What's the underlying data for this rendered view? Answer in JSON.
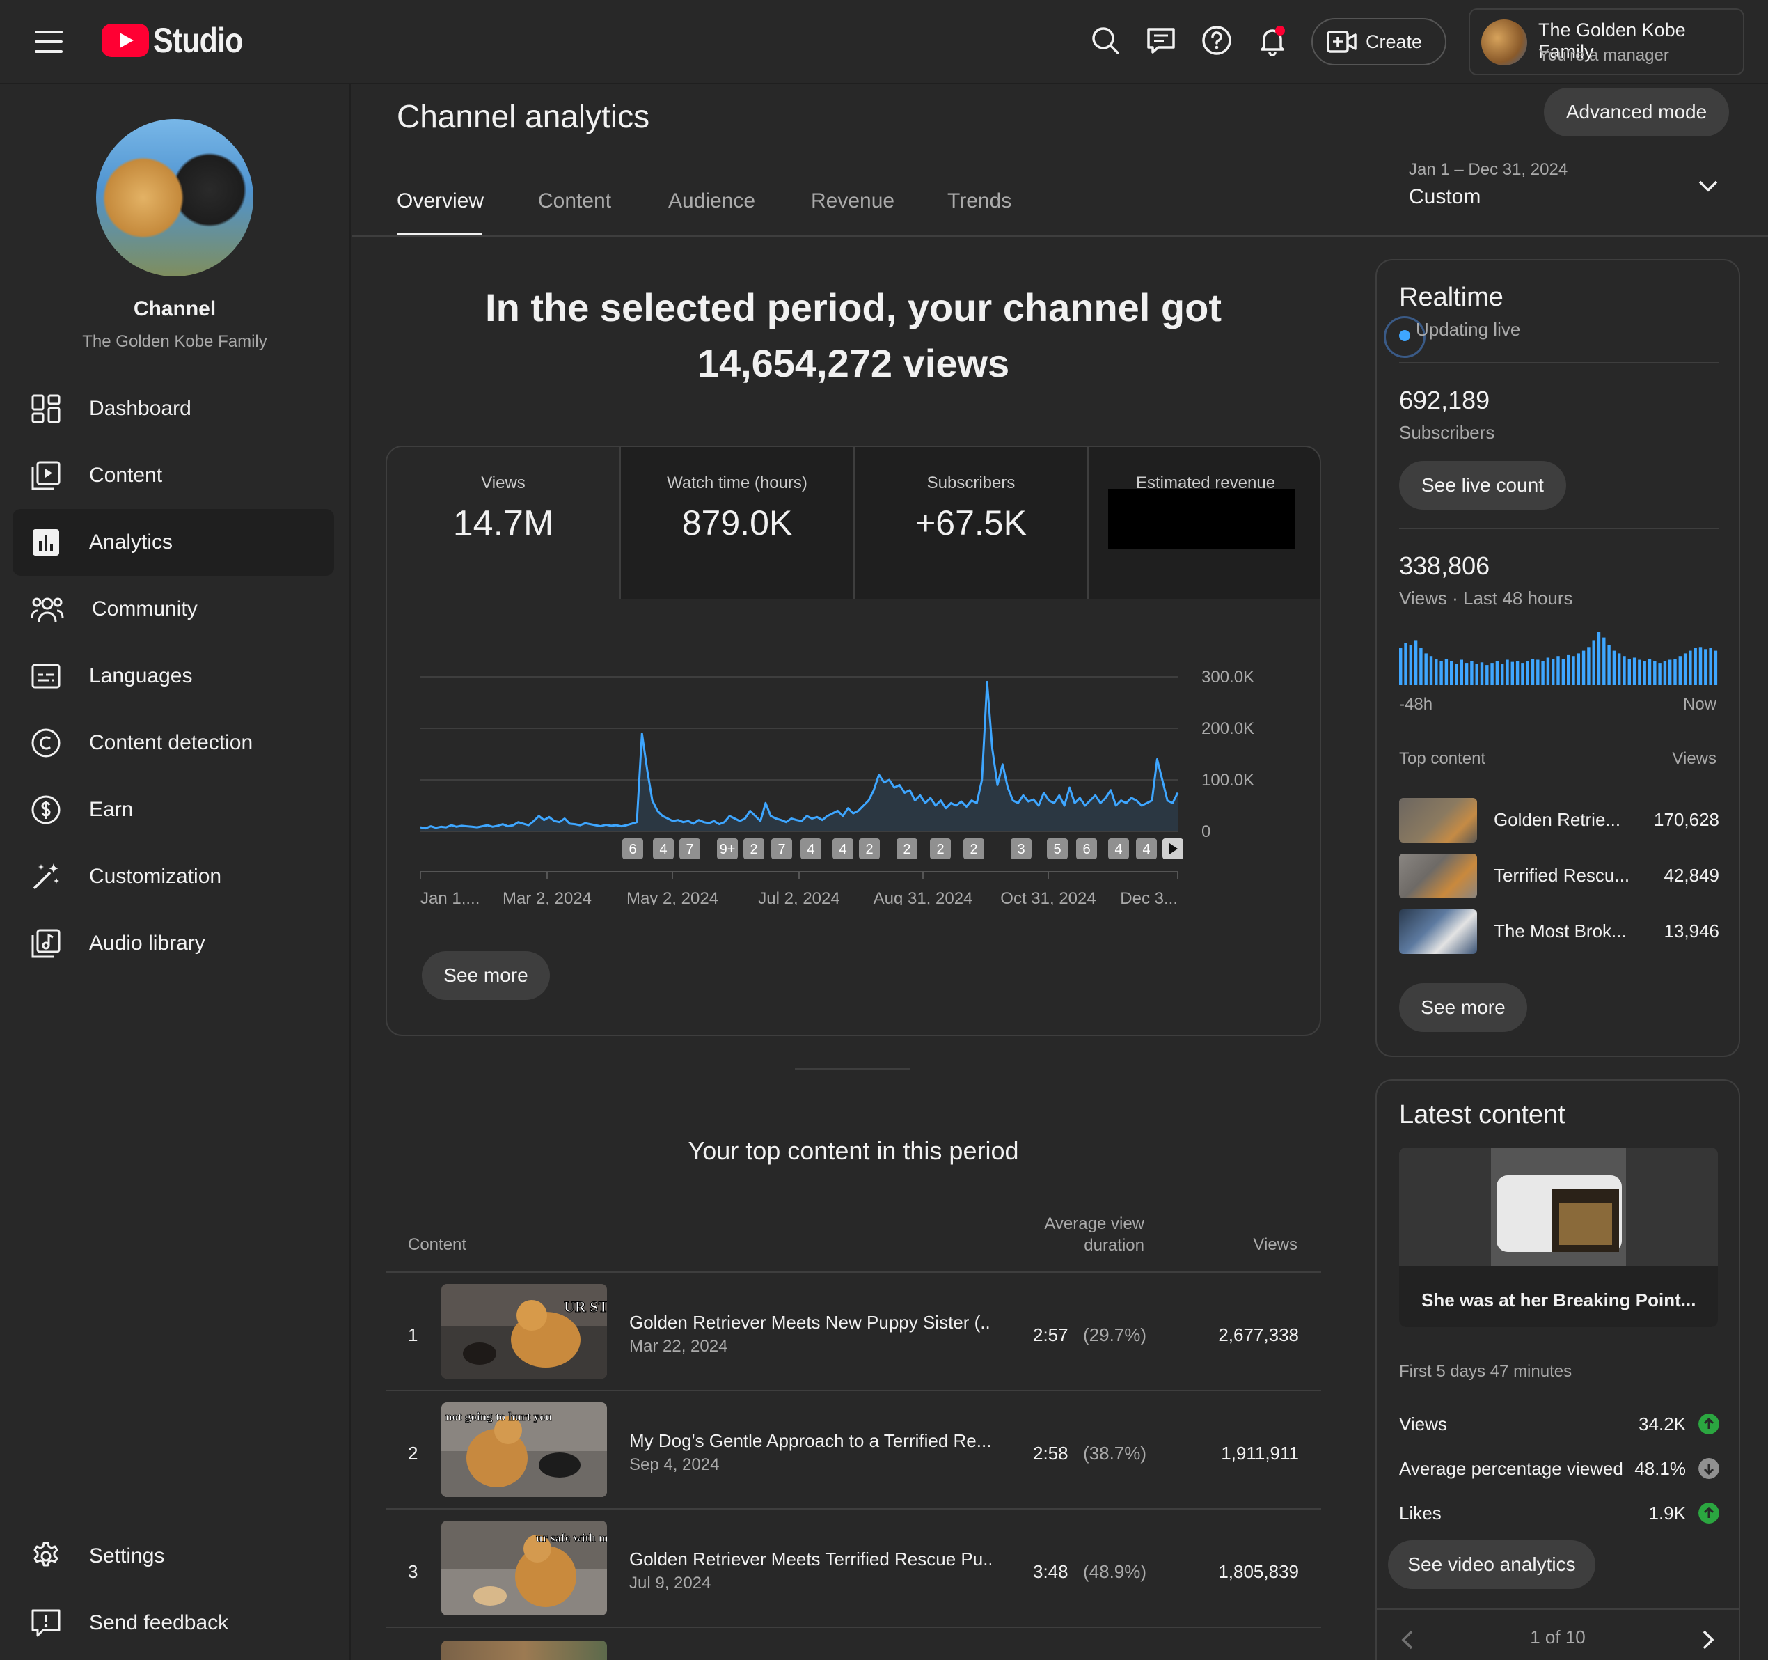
{
  "app": {
    "logo_text": "Studio"
  },
  "topbar": {
    "create_label": "Create",
    "account_name": "The Golden Kobe Family",
    "account_role": "You're a manager"
  },
  "sidebar": {
    "channel_label": "Channel",
    "channel_name": "The Golden Kobe Family",
    "items": [
      {
        "label": "Dashboard",
        "icon": "dashboard-icon"
      },
      {
        "label": "Content",
        "icon": "content-icon"
      },
      {
        "label": "Analytics",
        "icon": "analytics-icon",
        "active": true
      },
      {
        "label": "Community",
        "icon": "community-icon"
      },
      {
        "label": "Languages",
        "icon": "languages-icon"
      },
      {
        "label": "Content detection",
        "icon": "copyright-icon"
      },
      {
        "label": "Earn",
        "icon": "dollar-icon"
      },
      {
        "label": "Customization",
        "icon": "magic-wand-icon"
      },
      {
        "label": "Audio library",
        "icon": "audio-library-icon"
      }
    ],
    "settings_label": "Settings",
    "feedback_label": "Send feedback"
  },
  "header": {
    "title": "Channel analytics",
    "advanced_label": "Advanced mode",
    "tabs": [
      "Overview",
      "Content",
      "Audience",
      "Revenue",
      "Trends"
    ],
    "date_range": "Jan 1 – Dec 31, 2024",
    "date_mode": "Custom"
  },
  "headline": {
    "line1": "In the selected period, your channel got",
    "line2": "14,654,272 views"
  },
  "metrics": [
    {
      "label": "Views",
      "value": "14.7M"
    },
    {
      "label": "Watch time (hours)",
      "value": "879.0K"
    },
    {
      "label": "Subscribers",
      "value": "+67.5K"
    },
    {
      "label": "Estimated revenue",
      "value": ""
    }
  ],
  "chart_data": {
    "type": "area",
    "ylim": [
      0,
      300000
    ],
    "y_ticks": [
      "300.0K",
      "200.0K",
      "100.0K",
      "0"
    ],
    "x_ticks": [
      "Jan 1,...",
      "Mar 2, 2024",
      "May 2, 2024",
      "Jul 2, 2024",
      "Aug 31, 2024",
      "Oct 31, 2024",
      "Dec 3..."
    ],
    "x_tick_days": [
      0,
      61,
      122,
      183,
      243,
      304,
      337
    ],
    "series": [
      {
        "values": [
          8000,
          6000,
          10000,
          7000,
          9000,
          8000,
          12000,
          9000,
          11000,
          10000,
          9000,
          8000,
          10000,
          12000,
          9000,
          11000,
          14000,
          10000,
          12000,
          18000,
          15000,
          12000,
          20000,
          30000,
          22000,
          28000,
          20000,
          18000,
          25000,
          15000,
          14000,
          12000,
          16000,
          14000,
          12000,
          10000,
          13000,
          11000,
          12000,
          10000,
          12000,
          15000,
          18000,
          190000,
          120000,
          60000,
          40000,
          30000,
          25000,
          20000,
          22000,
          18000,
          20000,
          15000,
          22000,
          18000,
          16000,
          20000,
          14000,
          18000,
          30000,
          25000,
          20000,
          25000,
          40000,
          30000,
          20000,
          55000,
          30000,
          25000,
          22000,
          18000,
          25000,
          22000,
          20000,
          30000,
          25000,
          28000,
          22000,
          30000,
          35000,
          40000,
          30000,
          45000,
          35000,
          40000,
          50000,
          60000,
          80000,
          110000,
          95000,
          100000,
          85000,
          90000,
          75000,
          80000,
          60000,
          70000,
          55000,
          65000,
          50000,
          60000,
          45000,
          55000,
          50000,
          58000,
          48000,
          60000,
          55000,
          100000,
          290000,
          160000,
          90000,
          130000,
          85000,
          60000,
          55000,
          70000,
          58000,
          62000,
          50000,
          75000,
          60000,
          55000,
          70000,
          50000,
          85000,
          55000,
          65000,
          50000,
          60000,
          70000,
          55000,
          65000,
          80000,
          50000,
          60000,
          55000,
          65000,
          60000,
          50000,
          55000,
          60000,
          140000,
          100000,
          60000,
          55000,
          75000
        ]
      }
    ],
    "markers": [
      "6",
      "4",
      "7",
      "9+",
      "2",
      "7",
      "4",
      "4",
      "2",
      "2",
      "2",
      "2",
      "3",
      "5",
      "6",
      "4",
      "4"
    ]
  },
  "see_more_label": "See more",
  "top_content": {
    "title": "Your top content in this period",
    "headers": {
      "content": "Content",
      "avd": "Average view duration",
      "views": "Views"
    },
    "rows": [
      {
        "rank": "1",
        "title": "Golden Retriever Meets New Puppy Sister (...",
        "date": "Mar 22, 2024",
        "duration": "2:57",
        "pct": "(29.7%)",
        "views": "2,677,338",
        "thumb_text": "UR STAYING?"
      },
      {
        "rank": "2",
        "title": "My Dog's Gentle Approach to a Terrified Re...",
        "date": "Sep 4, 2024",
        "duration": "2:58",
        "pct": "(38.7%)",
        "views": "1,911,911",
        "thumb_text": "not going to hurt you"
      },
      {
        "rank": "3",
        "title": "Golden Retriever Meets Terrified Rescue Pu...",
        "date": "Jul 9, 2024",
        "duration": "3:48",
        "pct": "(48.9%)",
        "views": "1,805,839",
        "thumb_text": "ur safe with me"
      }
    ]
  },
  "realtime": {
    "title": "Realtime",
    "live_label": "Updating live",
    "subscribers_value": "692,189",
    "subscribers_label": "Subscribers",
    "see_live_label": "See live count",
    "views_value": "338,806",
    "views_label": "Views · Last 48 hours",
    "axis_start": "-48h",
    "axis_end": "Now",
    "bars": [
      0.7,
      0.8,
      0.75,
      0.85,
      0.7,
      0.6,
      0.55,
      0.5,
      0.45,
      0.5,
      0.45,
      0.4,
      0.48,
      0.42,
      0.45,
      0.4,
      0.43,
      0.38,
      0.42,
      0.45,
      0.4,
      0.48,
      0.44,
      0.46,
      0.42,
      0.45,
      0.5,
      0.48,
      0.46,
      0.52,
      0.5,
      0.55,
      0.5,
      0.58,
      0.55,
      0.6,
      0.65,
      0.72,
      0.85,
      1.0,
      0.9,
      0.75,
      0.65,
      0.6,
      0.55,
      0.5,
      0.52,
      0.48,
      0.45,
      0.5,
      0.46,
      0.42,
      0.45,
      0.48,
      0.5,
      0.55,
      0.6,
      0.65,
      0.7,
      0.72,
      0.68,
      0.7,
      0.65
    ],
    "top_content_label": "Top content",
    "top_views_label": "Views",
    "items": [
      {
        "title": "Golden Retrie...",
        "views": "170,628"
      },
      {
        "title": "Terrified Rescu...",
        "views": "42,849"
      },
      {
        "title": "The Most Brok...",
        "views": "13,946"
      }
    ],
    "see_more_label": "See more"
  },
  "latest": {
    "title": "Latest content",
    "caption": "She was at her Breaking Point...",
    "period": "First 5 days 47 minutes",
    "stats": [
      {
        "label": "Views",
        "value": "34.2K",
        "trend": "up"
      },
      {
        "label": "Average percentage viewed",
        "value": "48.1%",
        "trend": "down-neutral"
      },
      {
        "label": "Likes",
        "value": "1.9K",
        "trend": "up"
      }
    ],
    "analytics_label": "See video analytics",
    "pager": "1 of 10"
  },
  "colors": {
    "accent": "#3ea6ff",
    "brand": "#ff0033",
    "up": "#2ba640",
    "neutral": "#909090"
  }
}
